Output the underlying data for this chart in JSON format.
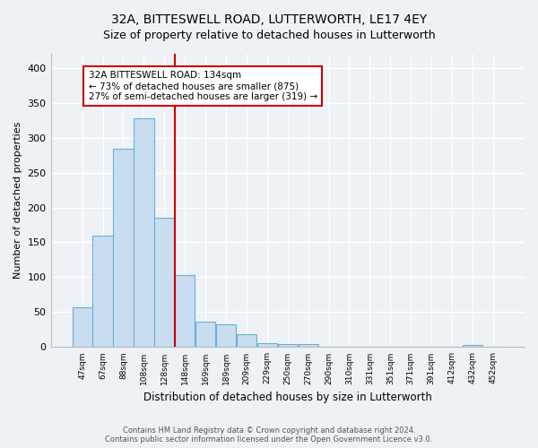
{
  "title": "32A, BITTESWELL ROAD, LUTTERWORTH, LE17 4EY",
  "subtitle": "Size of property relative to detached houses in Lutterworth",
  "xlabel": "Distribution of detached houses by size in Lutterworth",
  "ylabel": "Number of detached properties",
  "categories": [
    "47sqm",
    "67sqm",
    "88sqm",
    "108sqm",
    "128sqm",
    "148sqm",
    "169sqm",
    "189sqm",
    "209sqm",
    "229sqm",
    "250sqm",
    "270sqm",
    "290sqm",
    "310sqm",
    "331sqm",
    "351sqm",
    "371sqm",
    "391sqm",
    "412sqm",
    "432sqm",
    "452sqm"
  ],
  "values": [
    57,
    160,
    284,
    328,
    185,
    103,
    37,
    32,
    18,
    6,
    5,
    4,
    0,
    0,
    0,
    0,
    0,
    0,
    0,
    3,
    0
  ],
  "bar_color": "#c8ddf0",
  "bar_edge_color": "#6baed6",
  "vline_color": "#cc0000",
  "vline_x_index": 4.5,
  "annotation_title": "32A BITTESWELL ROAD: 134sqm",
  "annotation_line1": "← 73% of detached houses are smaller (875)",
  "annotation_line2": "27% of semi-detached houses are larger (319) →",
  "annotation_box_facecolor": "#ffffff",
  "annotation_box_edgecolor": "#cc0000",
  "ylim": [
    0,
    420
  ],
  "yticks": [
    0,
    50,
    100,
    150,
    200,
    250,
    300,
    350,
    400
  ],
  "footer_line1": "Contains HM Land Registry data © Crown copyright and database right 2024.",
  "footer_line2": "Contains public sector information licensed under the Open Government Licence v3.0.",
  "background_color": "#eef2f7",
  "grid_color": "#ffffff",
  "title_fontsize": 10,
  "subtitle_fontsize": 9
}
